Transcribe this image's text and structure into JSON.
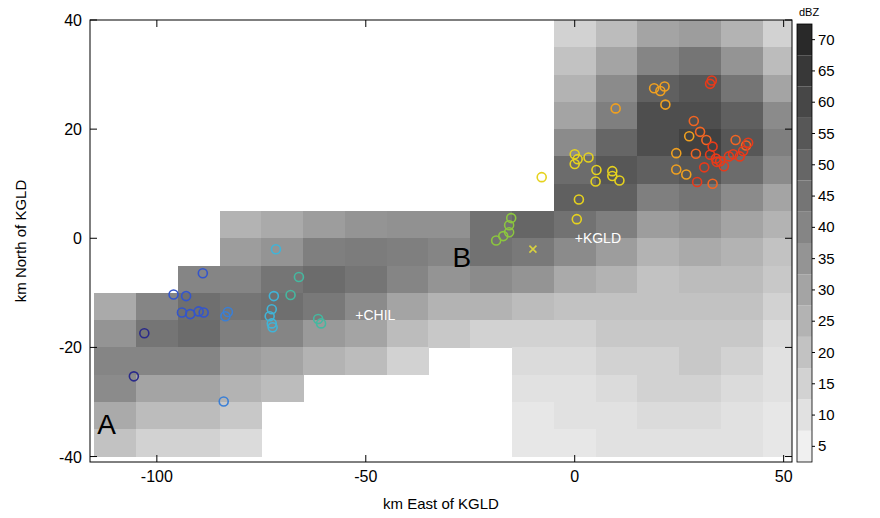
{
  "chart_data": {
    "type": "scatter",
    "x_label": "km East of KGLD",
    "y_label": "km North of KGLD",
    "xlim": [
      -116,
      52
    ],
    "ylim": [
      -41,
      40
    ],
    "xticks": [
      -100,
      -50,
      0,
      50
    ],
    "yticks": [
      -40,
      -20,
      0,
      20,
      40
    ],
    "grid": false,
    "heatmap": {
      "x_edges": [
        -115,
        -105,
        -95,
        -85,
        -75,
        -65,
        -55,
        -45,
        -35,
        -25,
        -15,
        -5,
        5,
        15,
        25,
        35,
        45,
        55
      ],
      "y_edges": [
        40,
        35,
        30,
        25,
        20,
        15,
        10,
        5,
        0,
        -5,
        -10,
        -15,
        -20,
        -25,
        -30,
        -35,
        -40
      ],
      "cells": [
        [
          null,
          null,
          null,
          null,
          null,
          null,
          null,
          null,
          null,
          null,
          null,
          15,
          22,
          30,
          32,
          25,
          15
        ],
        [
          null,
          null,
          null,
          null,
          null,
          null,
          null,
          null,
          null,
          null,
          null,
          20,
          30,
          40,
          45,
          35,
          22
        ],
        [
          null,
          null,
          null,
          null,
          null,
          null,
          null,
          null,
          null,
          null,
          null,
          25,
          38,
          52,
          55,
          45,
          30
        ],
        [
          null,
          null,
          null,
          null,
          null,
          null,
          null,
          null,
          null,
          null,
          null,
          30,
          42,
          58,
          58,
          52,
          38
        ],
        [
          null,
          null,
          null,
          null,
          null,
          null,
          null,
          null,
          null,
          null,
          null,
          38,
          50,
          58,
          62,
          55,
          42
        ],
        [
          null,
          null,
          null,
          null,
          null,
          null,
          null,
          null,
          null,
          null,
          null,
          48,
          55,
          52,
          55,
          48,
          38
        ],
        [
          null,
          null,
          null,
          null,
          null,
          null,
          null,
          null,
          null,
          null,
          null,
          52,
          52,
          42,
          45,
          38,
          30
        ],
        [
          null,
          null,
          null,
          25,
          28,
          32,
          35,
          36,
          36,
          46,
          50,
          46,
          42,
          32,
          35,
          30,
          25
        ],
        [
          null,
          null,
          null,
          32,
          35,
          42,
          43,
          42,
          40,
          46,
          44,
          38,
          32,
          25,
          28,
          25,
          20
        ],
        [
          null,
          null,
          40,
          40,
          45,
          48,
          45,
          40,
          35,
          38,
          35,
          28,
          25,
          20,
          22,
          22,
          18
        ],
        [
          28,
          40,
          47,
          45,
          47,
          44,
          38,
          30,
          25,
          25,
          22,
          20,
          20,
          20,
          20,
          20,
          15
        ],
        [
          35,
          45,
          48,
          42,
          40,
          33,
          30,
          22,
          18,
          15,
          15,
          15,
          18,
          18,
          18,
          18,
          12
        ],
        [
          40,
          40,
          40,
          32,
          30,
          25,
          22,
          15,
          null,
          null,
          12,
          12,
          15,
          15,
          18,
          15,
          10
        ],
        [
          38,
          30,
          30,
          25,
          22,
          null,
          null,
          null,
          null,
          null,
          10,
          10,
          12,
          15,
          15,
          12,
          10
        ],
        [
          28,
          22,
          22,
          18,
          null,
          null,
          null,
          null,
          null,
          null,
          8,
          10,
          10,
          12,
          12,
          10,
          8
        ],
        [
          20,
          15,
          15,
          12,
          null,
          null,
          null,
          null,
          null,
          null,
          8,
          8,
          10,
          10,
          10,
          10,
          8
        ]
      ]
    },
    "colorbar": {
      "label": "dBZ",
      "range": [
        2.5,
        72.5
      ],
      "ticks": [
        5,
        10,
        15,
        20,
        25,
        30,
        35,
        40,
        45,
        50,
        55,
        60,
        65,
        70
      ]
    },
    "series": [
      {
        "color": "#2a2a8a",
        "marker": "circle",
        "x": [
          -105.5,
          -103.0
        ],
        "y": [
          -25.3,
          -17.4
        ]
      },
      {
        "color": "#3355cc",
        "marker": "circle",
        "x": [
          -89.0,
          -96.0,
          -93.0,
          -94.0,
          -92.0,
          -90.0,
          -88.8
        ],
        "y": [
          -6.4,
          -10.3,
          -10.6,
          -13.6,
          -13.9,
          -13.4,
          -13.6
        ]
      },
      {
        "color": "#3a7fd6",
        "marker": "circle",
        "x": [
          -83.6,
          -83.0,
          -84.0
        ],
        "y": [
          -14.3,
          -13.5,
          -29.9
        ]
      },
      {
        "color": "#40b4d8",
        "marker": "circle",
        "x": [
          -71.5,
          -72.0,
          -72.5,
          -73.0,
          -72.5,
          -72.3
        ],
        "y": [
          -2.0,
          -10.6,
          -13.0,
          -14.3,
          -15.6,
          -16.3
        ]
      },
      {
        "color": "#45b8a0",
        "marker": "circle",
        "x": [
          -66.0,
          -68.0,
          -61.4,
          -60.7
        ],
        "y": [
          -7.1,
          -10.4,
          -14.8,
          -15.6
        ]
      },
      {
        "color": "#8cc63f",
        "marker": "circle",
        "x": [
          -18.8,
          -17.1,
          -15.7,
          -15.2,
          -15.7
        ],
        "y": [
          -0.4,
          0.4,
          1.1,
          3.7,
          2.4
        ]
      },
      {
        "color": "#d8d040",
        "marker": "x",
        "x": [
          -10.0
        ],
        "y": [
          -2.0
        ]
      },
      {
        "color": "#e6d21e",
        "marker": "circle",
        "x": [
          0.0,
          0.7,
          0.0,
          3.3,
          5.2,
          5.0,
          9.0,
          9.0,
          10.7,
          1.0,
          0.5,
          -7.9
        ],
        "y": [
          15.4,
          14.5,
          13.6,
          14.8,
          12.5,
          10.4,
          12.3,
          11.4,
          10.6,
          7.1,
          3.5,
          11.2
        ]
      },
      {
        "color": "#f0a020",
        "marker": "circle",
        "x": [
          9.8,
          19.0,
          20.5,
          21.5,
          21.7,
          27.4,
          24.3,
          24.3,
          26.7
        ],
        "y": [
          23.8,
          27.5,
          27.0,
          27.8,
          24.5,
          18.7,
          15.6,
          12.6,
          11.7
        ]
      },
      {
        "color": "#f26522",
        "marker": "circle",
        "x": [
          28.5,
          30.0,
          31.5,
          29.0,
          33.0,
          38.5,
          41.0
        ],
        "y": [
          21.5,
          19.5,
          18.0,
          15.5,
          10.0,
          18.0,
          17.0
        ]
      },
      {
        "color": "#e83a1a",
        "marker": "circle",
        "x": [
          32.4,
          32.8,
          33.0,
          32.4,
          33.8,
          34.8,
          35.7,
          36.9,
          37.9,
          40.3,
          39.5,
          41.5,
          29.3,
          31.0,
          34.0
        ],
        "y": [
          28.3,
          28.9,
          16.8,
          15.3,
          14.6,
          14.1,
          13.2,
          15.0,
          15.4,
          16.0,
          15.0,
          17.5,
          10.3,
          13.0,
          14.0
        ]
      }
    ],
    "annotations": [
      {
        "text": "A",
        "x": -112,
        "y": -34,
        "color": "#000000"
      },
      {
        "text": "B",
        "x": -27,
        "y": -3.5,
        "color": "#000000"
      },
      {
        "text": "+KGLD",
        "x": 0,
        "y": 0,
        "color": "#ffffff"
      },
      {
        "text": "+CHIL",
        "x": -52.5,
        "y": -14,
        "color": "#ffffff"
      }
    ]
  }
}
